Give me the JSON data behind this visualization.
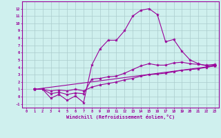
{
  "xlabel": "Windchill (Refroidissement éolien,°C)",
  "bg_color": "#cff0ee",
  "line_color": "#990099",
  "grid_color": "#aacccc",
  "xlim": [
    -0.5,
    23.5
  ],
  "ylim": [
    -1.5,
    13.0
  ],
  "xticks": [
    0,
    1,
    2,
    3,
    4,
    5,
    6,
    7,
    8,
    9,
    10,
    11,
    12,
    13,
    14,
    15,
    16,
    17,
    18,
    19,
    20,
    21,
    22,
    23
  ],
  "yticks": [
    -1,
    0,
    1,
    2,
    3,
    4,
    5,
    6,
    7,
    8,
    9,
    10,
    11,
    12
  ],
  "line1_x": [
    1,
    2,
    3,
    4,
    5,
    6,
    7,
    8,
    9,
    10,
    11,
    12,
    13,
    14,
    15,
    16,
    17,
    18,
    19,
    20,
    21,
    22,
    23
  ],
  "line1_y": [
    1.0,
    1.0,
    -0.2,
    0.3,
    -0.5,
    0.1,
    -0.8,
    4.3,
    6.5,
    7.7,
    7.7,
    9.0,
    11.0,
    11.8,
    12.0,
    11.2,
    7.5,
    7.8,
    6.2,
    5.0,
    4.5,
    4.2,
    4.3
  ],
  "line2_x": [
    1,
    2,
    3,
    4,
    5,
    6,
    7,
    8,
    9,
    10,
    11,
    12,
    13,
    14,
    15,
    16,
    17,
    18,
    19,
    20,
    21,
    22,
    23
  ],
  "line2_y": [
    1.0,
    1.0,
    0.4,
    0.6,
    0.3,
    0.5,
    0.4,
    2.4,
    2.5,
    2.7,
    2.8,
    3.2,
    3.7,
    4.2,
    4.5,
    4.3,
    4.3,
    4.6,
    4.7,
    4.5,
    4.4,
    4.3,
    4.4
  ],
  "line3_x": [
    1,
    2,
    3,
    4,
    5,
    6,
    7,
    8,
    9,
    10,
    11,
    12,
    13,
    14,
    15,
    16,
    17,
    18,
    19,
    20,
    21,
    22,
    23
  ],
  "line3_y": [
    1.0,
    1.0,
    0.8,
    0.9,
    0.8,
    1.0,
    0.8,
    1.3,
    1.6,
    1.8,
    2.0,
    2.3,
    2.5,
    2.8,
    3.0,
    3.1,
    3.2,
    3.4,
    3.6,
    3.7,
    3.8,
    4.0,
    4.2
  ],
  "line4_x": [
    1,
    23
  ],
  "line4_y": [
    1.0,
    4.2
  ]
}
